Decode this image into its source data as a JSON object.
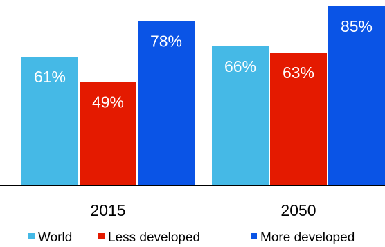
{
  "chart_data": {
    "type": "bar",
    "categories": [
      "2015",
      "2050"
    ],
    "series": [
      {
        "name": "World",
        "values": [
          61,
          66
        ],
        "labels": [
          "61%",
          "66%"
        ],
        "color": "#45b9e6"
      },
      {
        "name": "Less developed",
        "values": [
          49,
          63
        ],
        "labels": [
          "49%",
          "63%"
        ],
        "color": "#e41a00"
      },
      {
        "name": "More developed",
        "values": [
          78,
          85
        ],
        "labels": [
          "78%",
          "85%"
        ],
        "color": "#0a54e6"
      }
    ],
    "title": "",
    "xlabel": "",
    "ylabel": "",
    "ylim": [
      0,
      85
    ],
    "grid": false,
    "legend_position": "bottom"
  }
}
